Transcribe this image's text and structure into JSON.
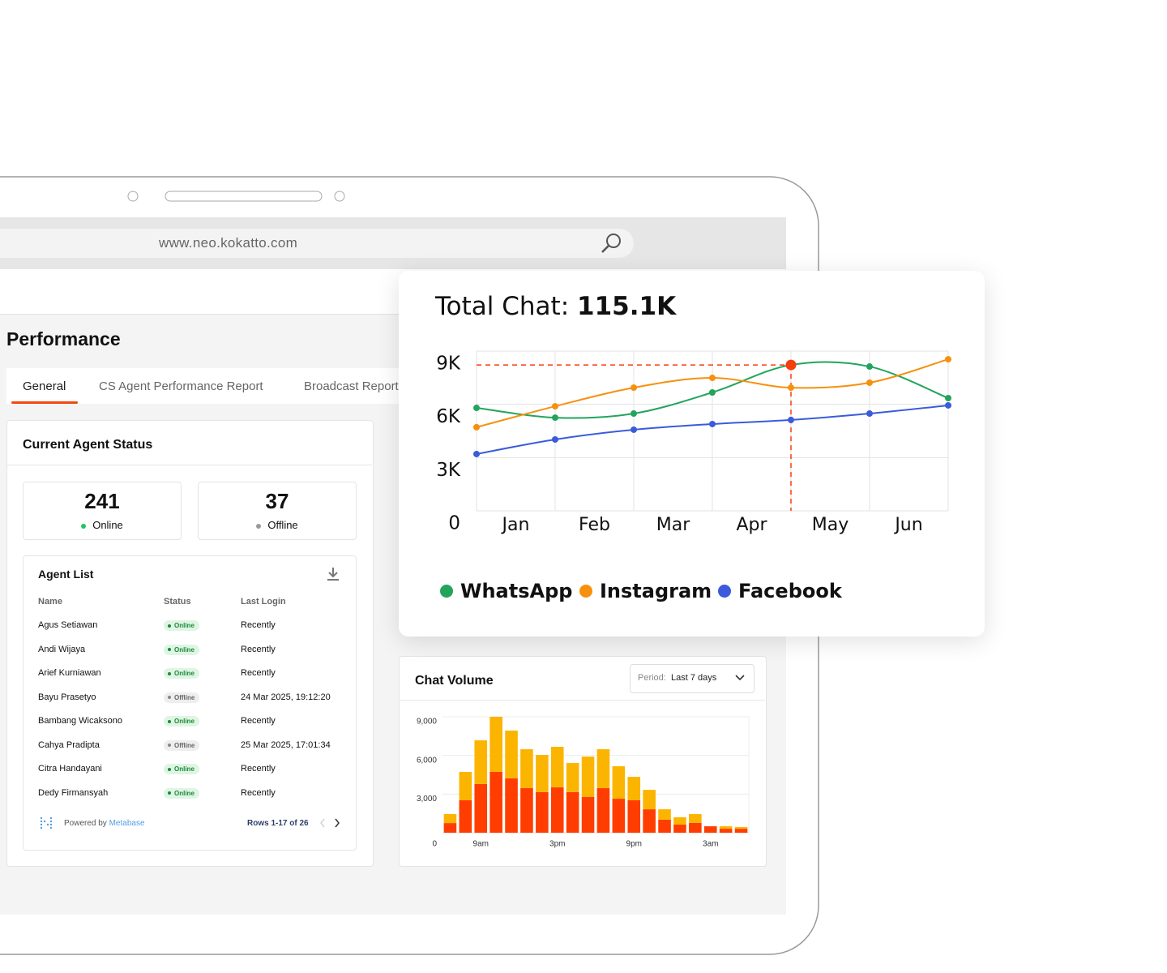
{
  "browser": {
    "url": "www.neo.kokatto.com"
  },
  "page": {
    "title": "Performance",
    "tabs": [
      "General",
      "CS Agent Performance Report",
      "Broadcast Report"
    ]
  },
  "agent_status": {
    "title": "Current Agent Status",
    "cards": [
      {
        "value": 241,
        "label": "Online"
      },
      {
        "value": 37,
        "label": "Offline"
      }
    ]
  },
  "agent_list": {
    "title": "Agent List",
    "columns": [
      "Name",
      "Status",
      "Last Login"
    ],
    "rows": [
      [
        "Agus Setiawan",
        "Online",
        "Recently"
      ],
      [
        "Andi Wijaya",
        "Online",
        "Recently"
      ],
      [
        "Arief Kurniawan",
        "Online",
        "Recently"
      ],
      [
        "Bayu Prasetyo",
        "Offline",
        "24 Mar 2025, 19:12:20"
      ],
      [
        "Bambang Wicaksono",
        "Online",
        "Recently"
      ],
      [
        "Cahya Pradipta",
        "Offline",
        "25 Mar 2025, 17:01:34"
      ],
      [
        "Citra Handayani",
        "Online",
        "Recently"
      ],
      [
        "Dedy Firmansyah",
        "Online",
        "Recently"
      ]
    ],
    "powered_by": "Powered by",
    "brand": "Metabase",
    "pagination": "Rows 1-17 of 26"
  },
  "chat_volume": {
    "title": "Chat Volume",
    "period_label": "Period:",
    "period_value": "Last 7 days"
  },
  "chart_data": [
    {
      "type": "line",
      "title": "Total Chat:",
      "total": "115.1K",
      "x": [
        0,
        1,
        2,
        3,
        4,
        5,
        6
      ],
      "xlim": [
        0,
        6
      ],
      "xticks": [
        {
          "value": 0.5,
          "label": "Jan"
        },
        {
          "value": 1.5,
          "label": "Feb"
        },
        {
          "value": 2.5,
          "label": "Mar"
        },
        {
          "value": 3.5,
          "label": "Apr"
        },
        {
          "value": 4.5,
          "label": "May"
        },
        {
          "value": 5.5,
          "label": "Jun"
        }
      ],
      "ylim": [
        0,
        9000
      ],
      "yticks": [
        0,
        {
          "value": 3000,
          "label": "3K"
        },
        {
          "value": 6000,
          "label": "6K"
        },
        {
          "value": 9000,
          "label": "9K"
        }
      ],
      "grid": true,
      "series": [
        {
          "name": "WhatsApp",
          "color": "#22a45d",
          "values": [
            5800,
            5250,
            5480,
            6670,
            8220,
            8130,
            6350
          ]
        },
        {
          "name": "Instagram",
          "color": "#f7900e",
          "values": [
            4710,
            5890,
            6940,
            7490,
            6940,
            7220,
            8540
          ]
        },
        {
          "name": "Facebook",
          "color": "#3b5bdb",
          "values": [
            3200,
            4020,
            4570,
            4890,
            5120,
            5480,
            5940
          ]
        }
      ],
      "highlight": {
        "series": 0,
        "index": 4,
        "color": "#f53d0e"
      },
      "legend": "bottom"
    },
    {
      "type": "stacked_bar",
      "categories": [
        null,
        null,
        "9am",
        null,
        null,
        null,
        null,
        "3pm",
        null,
        null,
        null,
        null,
        "9pm",
        null,
        null,
        null,
        null,
        "3am",
        null,
        null
      ],
      "ylim": [
        0,
        9000
      ],
      "yticks": [
        0,
        {
          "value": 3000,
          "label": "3,000"
        },
        {
          "value": 6000,
          "label": "6,000"
        },
        {
          "value": 9000,
          "label": "9,000"
        }
      ],
      "grid": true,
      "series": [
        {
          "color": "#ff3d00",
          "values": [
            750,
            2520,
            3780,
            4720,
            4220,
            3460,
            3150,
            3520,
            3150,
            2770,
            3460,
            2640,
            2520,
            1820,
            1010,
            630,
            760,
            500,
            310,
            310
          ]
        },
        {
          "color": "#fbb500",
          "values": [
            700,
            2200,
            3390,
            4280,
            3710,
            3020,
            2890,
            3150,
            2260,
            3140,
            3020,
            2520,
            1820,
            1510,
            810,
            570,
            690,
            0,
            190,
            130
          ]
        }
      ]
    }
  ]
}
